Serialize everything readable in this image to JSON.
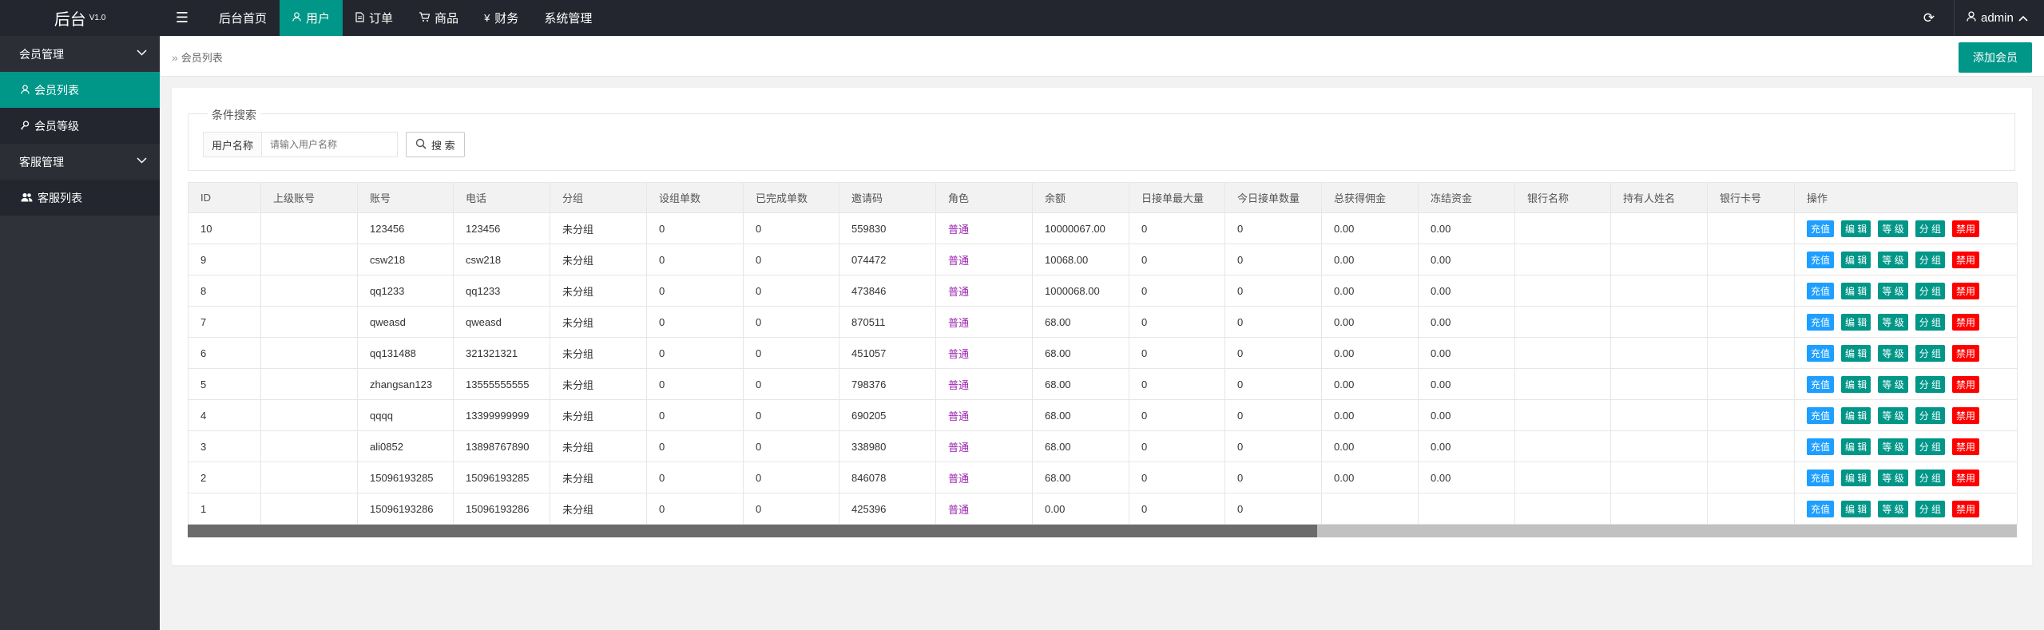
{
  "header": {
    "brand": "后台",
    "version": "V1.0",
    "nav": [
      {
        "label": "后台首页",
        "icon": "",
        "active": false
      },
      {
        "label": "用户",
        "icon": "user-icon",
        "active": true
      },
      {
        "label": "订单",
        "icon": "document-icon",
        "active": false
      },
      {
        "label": "商品",
        "icon": "cart-icon",
        "active": false
      },
      {
        "label": "财务",
        "icon": "yen-icon",
        "active": false
      },
      {
        "label": "系统管理",
        "icon": "",
        "active": false
      }
    ],
    "user": "admin"
  },
  "sidebar": {
    "groups": [
      {
        "label": "会员管理",
        "items": [
          {
            "label": "会员列表",
            "active": true,
            "icon": "user-icon"
          },
          {
            "label": "会员等级",
            "active": false,
            "icon": "key-icon"
          }
        ]
      },
      {
        "label": "客服管理",
        "items": [
          {
            "label": "客服列表",
            "active": false,
            "icon": "users-icon"
          }
        ]
      }
    ]
  },
  "breadcrumb": {
    "current": "会员列表"
  },
  "add_button": "添加会员",
  "search": {
    "legend": "条件搜索",
    "label": "用户名称",
    "placeholder": "请输入用户名称",
    "button": "搜 索"
  },
  "table": {
    "columns": [
      "ID",
      "上级账号",
      "账号",
      "电话",
      "分组",
      "设组单数",
      "已完成单数",
      "邀请码",
      "角色",
      "余额",
      "日接单最大量",
      "今日接单数量",
      "总获得佣金",
      "冻结资金",
      "银行名称",
      "持有人姓名",
      "银行卡号",
      "操作"
    ],
    "rows": [
      [
        "10",
        "",
        "123456",
        "123456",
        "未分组",
        "0",
        "0",
        "559830",
        "普通",
        "10000067.00",
        "0",
        "0",
        "0.00",
        "0.00",
        "",
        "",
        ""
      ],
      [
        "9",
        "",
        "csw218",
        "csw218",
        "未分组",
        "0",
        "0",
        "074472",
        "普通",
        "10068.00",
        "0",
        "0",
        "0.00",
        "0.00",
        "",
        "",
        ""
      ],
      [
        "8",
        "",
        "qq1233",
        "qq1233",
        "未分组",
        "0",
        "0",
        "473846",
        "普通",
        "1000068.00",
        "0",
        "0",
        "0.00",
        "0.00",
        "",
        "",
        ""
      ],
      [
        "7",
        "",
        "qweasd",
        "qweasd",
        "未分组",
        "0",
        "0",
        "870511",
        "普通",
        "68.00",
        "0",
        "0",
        "0.00",
        "0.00",
        "",
        "",
        ""
      ],
      [
        "6",
        "",
        "qq131488",
        "321321321",
        "未分组",
        "0",
        "0",
        "451057",
        "普通",
        "68.00",
        "0",
        "0",
        "0.00",
        "0.00",
        "",
        "",
        ""
      ],
      [
        "5",
        "",
        "zhangsan123",
        "13555555555",
        "未分组",
        "0",
        "0",
        "798376",
        "普通",
        "68.00",
        "0",
        "0",
        "0.00",
        "0.00",
        "",
        "",
        ""
      ],
      [
        "4",
        "",
        "qqqq",
        "13399999999",
        "未分组",
        "0",
        "0",
        "690205",
        "普通",
        "68.00",
        "0",
        "0",
        "0.00",
        "0.00",
        "",
        "",
        ""
      ],
      [
        "3",
        "",
        "ali0852",
        "13898767890",
        "未分组",
        "0",
        "0",
        "338980",
        "普通",
        "68.00",
        "0",
        "0",
        "0.00",
        "0.00",
        "",
        "",
        ""
      ],
      [
        "2",
        "",
        "15096193285",
        "15096193285",
        "未分组",
        "0",
        "0",
        "846078",
        "普通",
        "68.00",
        "0",
        "0",
        "0.00",
        "0.00",
        "",
        "",
        ""
      ],
      [
        "1",
        "",
        "15096193286",
        "15096193286",
        "未分组",
        "0",
        "0",
        "425396",
        "普通",
        "0.00",
        "0",
        "0",
        "",
        "",
        "",
        "",
        ""
      ]
    ],
    "actions": [
      {
        "label": "充值",
        "kind": "recharge"
      },
      {
        "label": "编 辑",
        "kind": "normal"
      },
      {
        "label": "等 级",
        "kind": "normal"
      },
      {
        "label": "分 组",
        "kind": "normal"
      },
      {
        "label": "禁用",
        "kind": "ban"
      }
    ]
  },
  "colors": {
    "accent": "#009688",
    "recharge": "#1e9fff",
    "danger": "#ff0000",
    "role": "#9c27b0",
    "topbar": "#23262e"
  }
}
